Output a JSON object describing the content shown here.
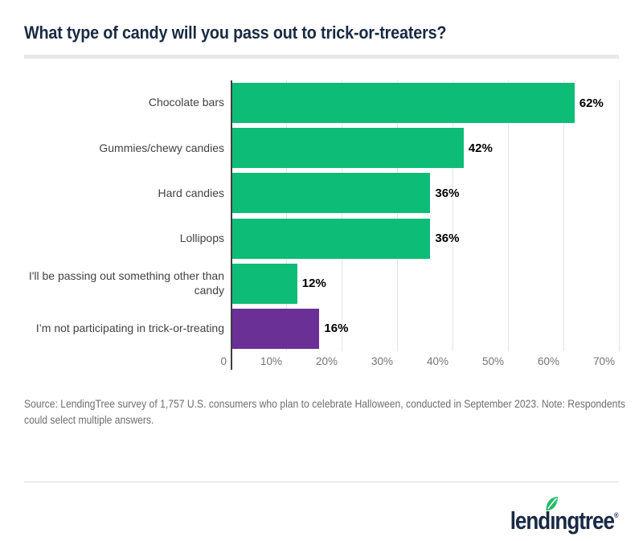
{
  "header": {
    "title": "What type of candy will you pass out to trick-or-treaters?"
  },
  "chart_data": {
    "type": "bar",
    "orientation": "horizontal",
    "title": "What type of candy will you pass out to trick-or-treaters?",
    "categories": [
      "Chocolate bars",
      "Gummies/chewy candies",
      "Hard candies",
      "Lollipops",
      "I'll be passing out something other than candy",
      "I’m not participating in trick-or-treating"
    ],
    "values": [
      62,
      42,
      36,
      36,
      12,
      16
    ],
    "value_labels": [
      "62%",
      "42%",
      "36%",
      "36%",
      "12%",
      "16%"
    ],
    "colors": [
      "#0DBC77",
      "#0DBC77",
      "#0DBC77",
      "#0DBC77",
      "#0DBC77",
      "#6A3096"
    ],
    "xmax": 70,
    "x_ticks": [
      "0",
      "10%",
      "20%",
      "30%",
      "40%",
      "50%",
      "60%",
      "70%"
    ],
    "xlabel": "",
    "ylabel": "",
    "grid": "vertical gridlines every 10%",
    "legend": "none"
  },
  "source": {
    "line1": "Source: LendingTree survey of 1,757 U.S. consumers who plan to celebrate Halloween, conducted in September 2023. Note: Respondents",
    "line2": "could select multiple answers."
  },
  "branding": {
    "logo_part1": "lend",
    "logo_dotless_i": "ı",
    "logo_part2": "ngtree",
    "registered": "®",
    "leaf_icon": "leaf-icon"
  },
  "colors": {
    "brand_navy": "#182A44",
    "brand_green": "#0DBC77",
    "accent_purple": "#6A3096",
    "axis": "#3F3F3F",
    "gridline": "#E4E4E4",
    "tick_text": "#757575",
    "category_text": "#424242",
    "source_text": "#6E6E6E"
  }
}
